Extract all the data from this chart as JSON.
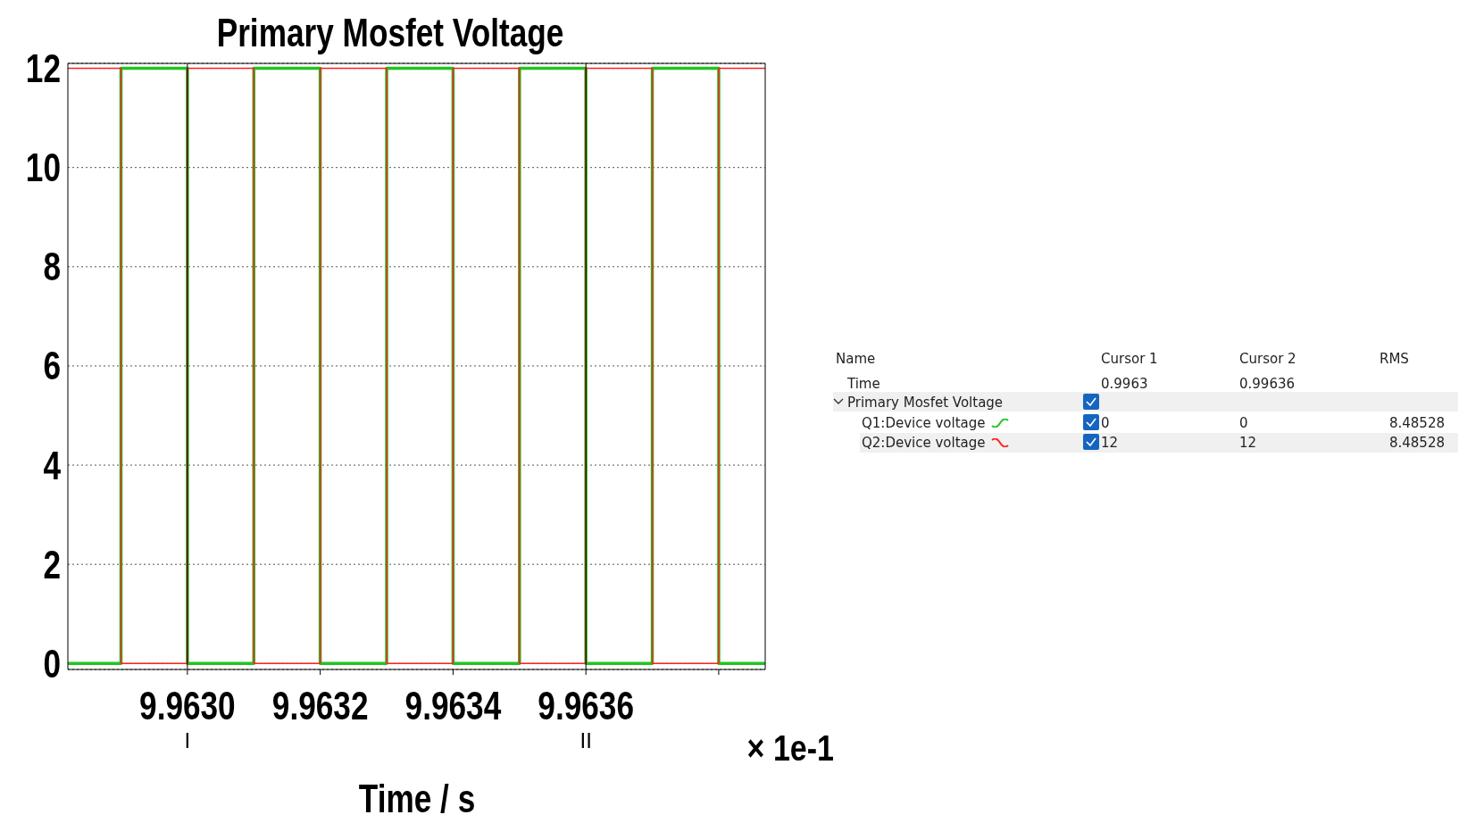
{
  "chart_data": {
    "type": "step",
    "title": "Primary Mosfet Voltage",
    "xlabel": "Time / s",
    "annotations": [
      "× 1e-1",
      "Name",
      "Cursor 1",
      "Cursor 2",
      "RMS",
      "Time",
      "0.9963",
      "0.99636",
      "0",
      "0",
      "8.48528",
      "12",
      "12",
      "8.48528"
    ],
    "series": [
      {
        "name": "Q1:Device voltage",
        "color": "#22c322",
        "x": [
          9.96282,
          9.9629,
          9.963,
          9.9631,
          9.9632,
          9.9633,
          9.9634,
          9.9635,
          9.9636,
          9.9637,
          9.9638,
          9.96387
        ],
        "values": [
          0,
          12,
          0,
          12,
          0,
          12,
          0,
          12,
          0,
          12,
          0,
          0
        ]
      },
      {
        "name": "Q2:Device voltage",
        "color": "#ff2020",
        "x": [
          9.96282,
          9.9629,
          9.963,
          9.9631,
          9.9632,
          9.9633,
          9.9634,
          9.9635,
          9.9636,
          9.9637,
          9.9638,
          9.96387
        ],
        "values": [
          12,
          0,
          12,
          0,
          12,
          0,
          12,
          0,
          12,
          0,
          12,
          12
        ]
      }
    ],
    "xlim": [
      9.96282,
      9.96387
    ],
    "xticks": [
      {
        "value": 9.963,
        "label": "9.9630"
      },
      {
        "value": 9.9632,
        "label": "9.9632"
      },
      {
        "value": 9.9634,
        "label": "9.9634"
      },
      {
        "value": 9.9636,
        "label": "9.9636"
      },
      {
        "value": 9.9638,
        "label": null
      }
    ],
    "ylim": [
      -0.12,
      12.1
    ],
    "yticks": [
      0,
      2,
      4,
      6,
      8,
      10,
      12
    ],
    "ref_lines": [
      {
        "axis": "x",
        "value": 9.963,
        "label": "I",
        "color": "#000000"
      },
      {
        "axis": "x",
        "value": 9.9636,
        "label": "II",
        "color": "#000000"
      }
    ],
    "grid": "y",
    "legend": "right",
    "marker": "none",
    "line_style": "solid"
  }
}
